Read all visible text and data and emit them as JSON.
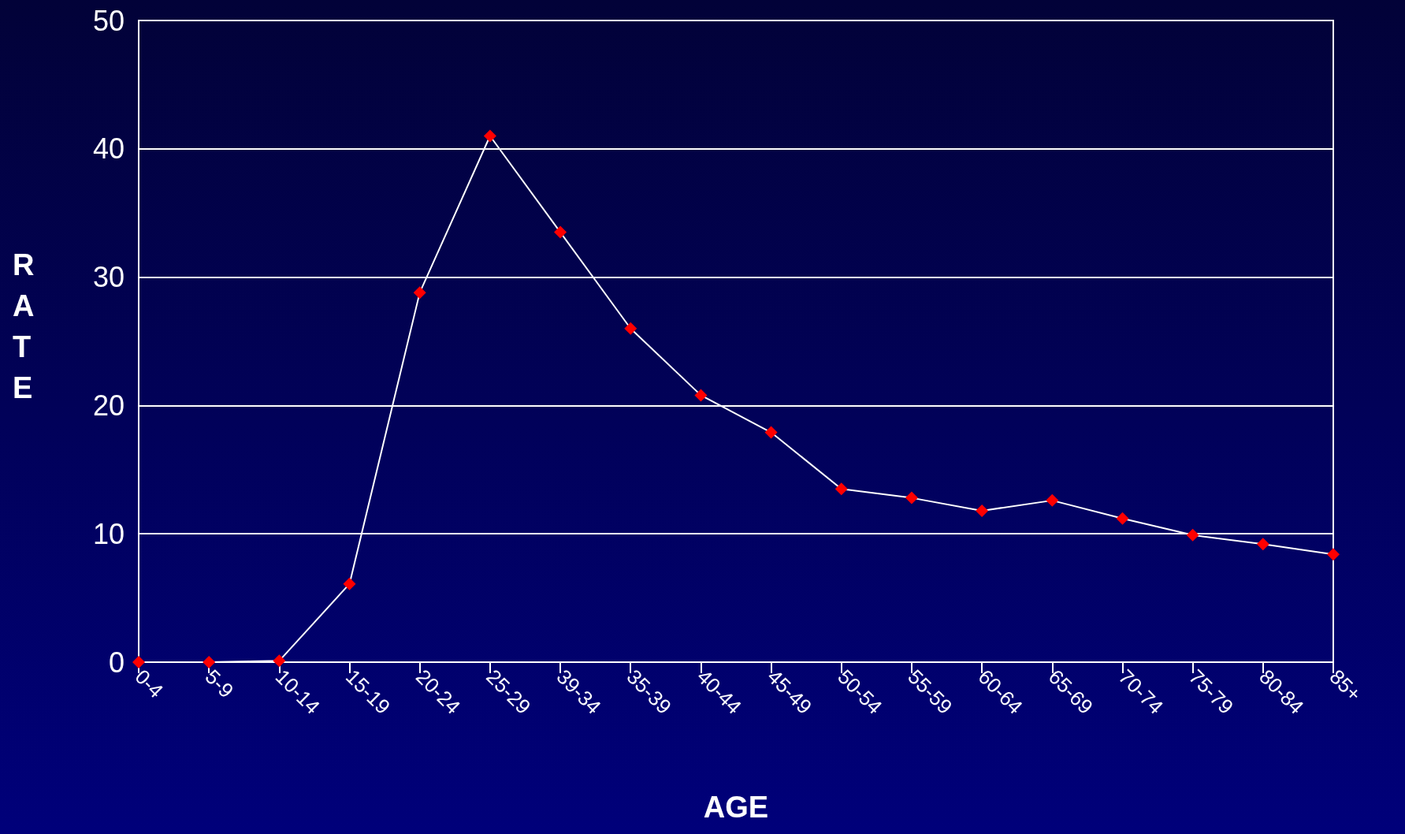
{
  "chart_data": {
    "type": "line",
    "xlabel": "AGE",
    "ylabel": "RATE",
    "categories": [
      "0-4",
      "5-9",
      "10-14",
      "15-19",
      "20-24",
      "25-29",
      "39-34",
      "35-39",
      "40-44",
      "45-49",
      "50-54",
      "55-59",
      "60-64",
      "65-69",
      "70-74",
      "75-79",
      "80-84",
      "85+"
    ],
    "series": [
      {
        "color": "#ffffff",
        "values": [
          0,
          0,
          0.1,
          6.1,
          28.8,
          41.0,
          33.5,
          26.0,
          20.8,
          17.9,
          13.5,
          12.8,
          11.8,
          12.6,
          11.2,
          9.9,
          9.2,
          8.4
        ]
      }
    ],
    "marker": "diamond",
    "line_style": "solid",
    "ylim": [
      0,
      50
    ],
    "yticks": [
      0,
      10,
      20,
      30,
      40,
      50
    ],
    "grid": "y"
  }
}
